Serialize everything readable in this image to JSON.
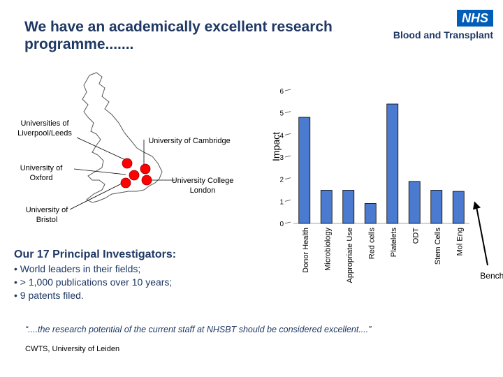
{
  "slide": {
    "title": "We have an academically excellent research programme......."
  },
  "logo": {
    "box_text": "NHS",
    "text": "Blood and Transplant",
    "color": "#005eb8"
  },
  "map": {
    "labels": {
      "liverpool_leeds": "Universities of Liverpool/Leeds",
      "cambridge": "University of Cambridge",
      "oxford": "University of Oxford",
      "ucl": "University College London",
      "bristol": "University of Bristol"
    },
    "marker_color": "#ff0000"
  },
  "chart_data": {
    "type": "bar",
    "ylabel": "Impact",
    "ylim": [
      0,
      6
    ],
    "yticks": [
      "0",
      "1",
      "2",
      "3",
      "4",
      "5",
      "6"
    ],
    "categories": [
      "Donor Health",
      "Microbiology",
      "Appropriate Use",
      "Red cells",
      "Platelets",
      "ODT",
      "Stem Cells",
      "Mol Eng"
    ],
    "values": [
      4.8,
      1.5,
      1.5,
      0.9,
      5.4,
      1.9,
      1.5,
      1.45
    ],
    "benchmark": 1,
    "benchmark_label": "Benchmark",
    "bar_color": "#4a7bd0"
  },
  "investigators": {
    "heading": "Our 17 Principal Investigators:",
    "items": [
      "• World leaders in their fields;",
      "• > 1,000 publications over 10 years;",
      "• 9 patents filed."
    ]
  },
  "quote": {
    "text": "“....the research potential of the current staff at NHSBT should be considered excellent....”",
    "source": "CWTS, University of Leiden"
  }
}
